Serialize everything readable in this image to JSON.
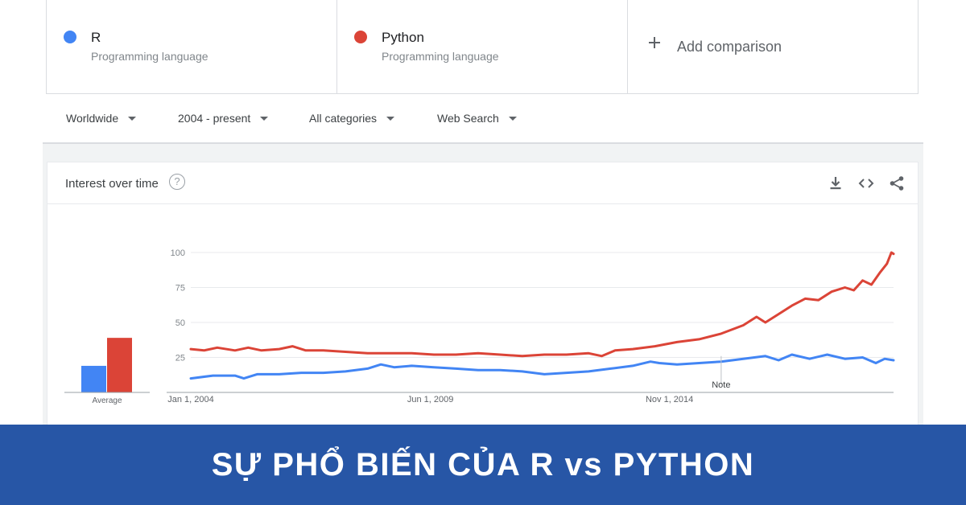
{
  "terms": [
    {
      "name": "R",
      "category": "Programming language",
      "color": "#4285f4"
    },
    {
      "name": "Python",
      "category": "Programming language",
      "color": "#db4437"
    }
  ],
  "add_comparison": "Add comparison",
  "filters": {
    "region": "Worldwide",
    "time": "2004 - present",
    "category": "All categories",
    "search_type": "Web Search"
  },
  "card": {
    "title": "Interest over time",
    "help": "?",
    "icons": [
      "download-icon",
      "embed-code-icon",
      "share-icon"
    ]
  },
  "banner": {
    "text": "SỰ PHỔ BIẾN CỦA R vs PYTHON"
  },
  "chart_data": {
    "type": "line",
    "y_ticks": [
      25,
      50,
      75,
      100
    ],
    "ylim": [
      0,
      100
    ],
    "x_ticks": [
      {
        "label": "Jan 1, 2004",
        "t": 2004.0
      },
      {
        "label": "Jun 1, 2009",
        "t": 2009.42
      },
      {
        "label": "Nov 1, 2014",
        "t": 2014.83
      }
    ],
    "xlim": [
      2004.0,
      2019.9
    ],
    "note": {
      "label": "Note",
      "t": 2016.0
    },
    "averages": {
      "label": "Average",
      "values": [
        {
          "name": "R",
          "value": 19
        },
        {
          "name": "Python",
          "value": 39
        }
      ]
    },
    "series": [
      {
        "name": "R",
        "color": "#4285f4",
        "points": [
          [
            2004.0,
            10
          ],
          [
            2004.5,
            12
          ],
          [
            2005.0,
            12
          ],
          [
            2005.2,
            10
          ],
          [
            2005.5,
            13
          ],
          [
            2006.0,
            13
          ],
          [
            2006.5,
            14
          ],
          [
            2007.0,
            14
          ],
          [
            2007.5,
            15
          ],
          [
            2008.0,
            17
          ],
          [
            2008.3,
            20
          ],
          [
            2008.6,
            18
          ],
          [
            2009.0,
            19
          ],
          [
            2009.5,
            18
          ],
          [
            2010.0,
            17
          ],
          [
            2010.5,
            16
          ],
          [
            2011.0,
            16
          ],
          [
            2011.5,
            15
          ],
          [
            2012.0,
            13
          ],
          [
            2012.5,
            14
          ],
          [
            2013.0,
            15
          ],
          [
            2013.5,
            17
          ],
          [
            2014.0,
            19
          ],
          [
            2014.4,
            22
          ],
          [
            2014.6,
            21
          ],
          [
            2015.0,
            20
          ],
          [
            2015.5,
            21
          ],
          [
            2016.0,
            22
          ],
          [
            2016.5,
            24
          ],
          [
            2017.0,
            26
          ],
          [
            2017.3,
            23
          ],
          [
            2017.6,
            27
          ],
          [
            2018.0,
            24
          ],
          [
            2018.4,
            27
          ],
          [
            2018.8,
            24
          ],
          [
            2019.2,
            25
          ],
          [
            2019.5,
            21
          ],
          [
            2019.7,
            24
          ],
          [
            2019.9,
            23
          ]
        ]
      },
      {
        "name": "Python",
        "color": "#db4437",
        "points": [
          [
            2004.0,
            31
          ],
          [
            2004.3,
            30
          ],
          [
            2004.6,
            32
          ],
          [
            2005.0,
            30
          ],
          [
            2005.3,
            32
          ],
          [
            2005.6,
            30
          ],
          [
            2006.0,
            31
          ],
          [
            2006.3,
            33
          ],
          [
            2006.6,
            30
          ],
          [
            2007.0,
            30
          ],
          [
            2007.5,
            29
          ],
          [
            2008.0,
            28
          ],
          [
            2008.5,
            28
          ],
          [
            2009.0,
            28
          ],
          [
            2009.5,
            27
          ],
          [
            2010.0,
            27
          ],
          [
            2010.5,
            28
          ],
          [
            2011.0,
            27
          ],
          [
            2011.5,
            26
          ],
          [
            2012.0,
            27
          ],
          [
            2012.5,
            27
          ],
          [
            2013.0,
            28
          ],
          [
            2013.3,
            26
          ],
          [
            2013.6,
            30
          ],
          [
            2014.0,
            31
          ],
          [
            2014.5,
            33
          ],
          [
            2015.0,
            36
          ],
          [
            2015.5,
            38
          ],
          [
            2016.0,
            42
          ],
          [
            2016.5,
            48
          ],
          [
            2016.8,
            54
          ],
          [
            2017.0,
            50
          ],
          [
            2017.3,
            56
          ],
          [
            2017.6,
            62
          ],
          [
            2017.9,
            67
          ],
          [
            2018.2,
            66
          ],
          [
            2018.5,
            72
          ],
          [
            2018.8,
            75
          ],
          [
            2019.0,
            73
          ],
          [
            2019.2,
            80
          ],
          [
            2019.4,
            77
          ],
          [
            2019.6,
            86
          ],
          [
            2019.75,
            92
          ],
          [
            2019.85,
            100
          ],
          [
            2019.9,
            99
          ]
        ]
      }
    ]
  }
}
